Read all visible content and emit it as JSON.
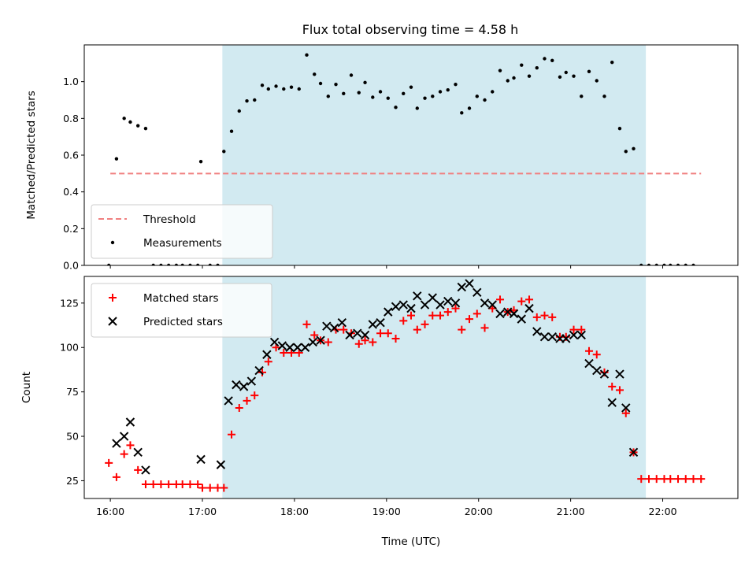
{
  "title": "Flux total observing time = 4.58 h",
  "colors": {
    "shade": "#add8e6",
    "threshold": "#f08080",
    "measurement": "#000000",
    "matched": "#ff0000",
    "predicted": "#000000"
  },
  "chart_data": [
    {
      "type": "scatter",
      "title": "Flux total observing time = 4.58 h",
      "xlabel": "",
      "ylabel": "Matched/Predicted stars",
      "ylim": [
        0,
        1.2
      ],
      "yticks": [
        0.0,
        0.2,
        0.4,
        0.6,
        0.8,
        1.0
      ],
      "ytick_labels": [
        "0.0",
        "0.2",
        "0.4",
        "0.6",
        "0.8",
        "1.0"
      ],
      "xlim": [
        "15:43",
        "22:49"
      ],
      "xticks": [
        "16:00",
        "17:00",
        "18:00",
        "19:00",
        "20:00",
        "21:00",
        "22:00"
      ],
      "shaded_region": [
        "17:13",
        "21:49"
      ],
      "legend": {
        "position": "lower left",
        "entries": [
          "Threshold",
          "Measurements"
        ]
      },
      "series": [
        {
          "name": "Threshold",
          "kind": "line",
          "x": [
            "16:00",
            "22:25"
          ],
          "y": [
            0.5,
            0.5
          ]
        },
        {
          "name": "Measurements",
          "kind": "points",
          "points": [
            [
              "15:59",
              0.0
            ],
            [
              "16:04",
              0.58
            ],
            [
              "16:09",
              0.8
            ],
            [
              "16:13",
              0.78
            ],
            [
              "16:18",
              0.76
            ],
            [
              "16:23",
              0.745
            ],
            [
              "16:28",
              0.0
            ],
            [
              "16:33",
              0.0
            ],
            [
              "16:38",
              0.0
            ],
            [
              "16:43",
              0.0
            ],
            [
              "16:47",
              0.0
            ],
            [
              "16:52",
              0.0
            ],
            [
              "16:57",
              0.0
            ],
            [
              "16:59",
              0.565
            ],
            [
              "17:05",
              0.0
            ],
            [
              "17:10",
              0.0
            ],
            [
              "17:14",
              0.62
            ],
            [
              "17:19",
              0.73
            ],
            [
              "17:24",
              0.84
            ],
            [
              "17:29",
              0.895
            ],
            [
              "17:34",
              0.9
            ],
            [
              "17:39",
              0.98
            ],
            [
              "17:43",
              0.96
            ],
            [
              "17:48",
              0.975
            ],
            [
              "17:53",
              0.96
            ],
            [
              "17:58",
              0.97
            ],
            [
              "18:03",
              0.96
            ],
            [
              "18:08",
              1.145
            ],
            [
              "18:13",
              1.04
            ],
            [
              "18:17",
              0.99
            ],
            [
              "18:22",
              0.92
            ],
            [
              "18:27",
              0.985
            ],
            [
              "18:32",
              0.935
            ],
            [
              "18:37",
              1.035
            ],
            [
              "18:42",
              0.94
            ],
            [
              "18:46",
              0.995
            ],
            [
              "18:51",
              0.915
            ],
            [
              "18:56",
              0.945
            ],
            [
              "19:01",
              0.91
            ],
            [
              "19:06",
              0.86
            ],
            [
              "19:11",
              0.935
            ],
            [
              "19:16",
              0.97
            ],
            [
              "19:20",
              0.855
            ],
            [
              "19:25",
              0.91
            ],
            [
              "19:30",
              0.92
            ],
            [
              "19:35",
              0.945
            ],
            [
              "19:40",
              0.955
            ],
            [
              "19:45",
              0.985
            ],
            [
              "19:49",
              0.83
            ],
            [
              "19:54",
              0.855
            ],
            [
              "19:59",
              0.92
            ],
            [
              "20:04",
              0.9
            ],
            [
              "20:09",
              0.945
            ],
            [
              "20:14",
              1.06
            ],
            [
              "20:19",
              1.005
            ],
            [
              "20:23",
              1.02
            ],
            [
              "20:28",
              1.09
            ],
            [
              "20:33",
              1.03
            ],
            [
              "20:38",
              1.075
            ],
            [
              "20:43",
              1.125
            ],
            [
              "20:48",
              1.115
            ],
            [
              "20:53",
              1.025
            ],
            [
              "20:57",
              1.05
            ],
            [
              "21:02",
              1.03
            ],
            [
              "21:07",
              0.92
            ],
            [
              "21:12",
              1.055
            ],
            [
              "21:17",
              1.005
            ],
            [
              "21:22",
              0.92
            ],
            [
              "21:27",
              1.105
            ],
            [
              "21:32",
              0.745
            ],
            [
              "21:36",
              0.62
            ],
            [
              "21:41",
              0.635
            ],
            [
              "21:46",
              0.0
            ],
            [
              "21:51",
              0.0
            ],
            [
              "21:56",
              0.0
            ],
            [
              "22:01",
              0.0
            ],
            [
              "22:05",
              0.0
            ],
            [
              "22:10",
              0.0
            ],
            [
              "22:15",
              0.0
            ],
            [
              "22:20",
              0.0
            ]
          ]
        }
      ]
    },
    {
      "type": "scatter",
      "title": "",
      "xlabel": "Time (UTC)",
      "ylabel": "Count",
      "ylim": [
        15,
        140
      ],
      "yticks": [
        25,
        50,
        75,
        100,
        125
      ],
      "ytick_labels": [
        "25",
        "50",
        "75",
        "100",
        "125"
      ],
      "xlim": [
        "15:43",
        "22:49"
      ],
      "xticks": [
        "16:00",
        "17:00",
        "18:00",
        "19:00",
        "20:00",
        "21:00",
        "22:00"
      ],
      "xtick_labels": [
        "16:00",
        "17:00",
        "18:00",
        "19:00",
        "20:00",
        "21:00",
        "22:00"
      ],
      "shaded_region": [
        "17:13",
        "21:49"
      ],
      "legend": {
        "position": "upper left",
        "entries": [
          "Matched stars",
          "Predicted stars"
        ]
      },
      "series": [
        {
          "name": "Matched stars",
          "kind": "plus",
          "points": [
            [
              "15:59",
              35
            ],
            [
              "16:04",
              27
            ],
            [
              "16:09",
              40
            ],
            [
              "16:13",
              45
            ],
            [
              "16:18",
              31
            ],
            [
              "16:23",
              23
            ],
            [
              "16:28",
              23
            ],
            [
              "16:33",
              23
            ],
            [
              "16:38",
              23
            ],
            [
              "16:43",
              23
            ],
            [
              "16:47",
              23
            ],
            [
              "16:52",
              23
            ],
            [
              "16:57",
              23
            ],
            [
              "17:00",
              21
            ],
            [
              "17:05",
              21
            ],
            [
              "17:10",
              21
            ],
            [
              "17:14",
              21
            ],
            [
              "17:19",
              51
            ],
            [
              "17:24",
              66
            ],
            [
              "17:29",
              70
            ],
            [
              "17:34",
              73
            ],
            [
              "17:39",
              86
            ],
            [
              "17:43",
              92
            ],
            [
              "17:48",
              100
            ],
            [
              "17:53",
              97
            ],
            [
              "17:58",
              97
            ],
            [
              "18:03",
              97
            ],
            [
              "18:08",
              113
            ],
            [
              "18:13",
              107
            ],
            [
              "18:17",
              104
            ],
            [
              "18:22",
              103
            ],
            [
              "18:27",
              110
            ],
            [
              "18:32",
              110
            ],
            [
              "18:37",
              108
            ],
            [
              "18:42",
              102
            ],
            [
              "18:46",
              104
            ],
            [
              "18:51",
              103
            ],
            [
              "18:56",
              108
            ],
            [
              "19:01",
              108
            ],
            [
              "19:06",
              105
            ],
            [
              "19:11",
              115
            ],
            [
              "19:16",
              118
            ],
            [
              "19:20",
              110
            ],
            [
              "19:25",
              113
            ],
            [
              "19:30",
              118
            ],
            [
              "19:35",
              118
            ],
            [
              "19:40",
              120
            ],
            [
              "19:45",
              122
            ],
            [
              "19:49",
              110
            ],
            [
              "19:54",
              116
            ],
            [
              "19:59",
              119
            ],
            [
              "20:04",
              111
            ],
            [
              "20:09",
              122
            ],
            [
              "20:14",
              127
            ],
            [
              "20:19",
              120
            ],
            [
              "20:23",
              121
            ],
            [
              "20:28",
              126
            ],
            [
              "20:33",
              127
            ],
            [
              "20:38",
              117
            ],
            [
              "20:43",
              118
            ],
            [
              "20:48",
              117
            ],
            [
              "20:53",
              106
            ],
            [
              "20:57",
              106
            ],
            [
              "21:02",
              110
            ],
            [
              "21:07",
              110
            ],
            [
              "21:12",
              98
            ],
            [
              "21:17",
              96
            ],
            [
              "21:22",
              86
            ],
            [
              "21:27",
              78
            ],
            [
              "21:32",
              76
            ],
            [
              "21:36",
              63
            ],
            [
              "21:41",
              41
            ],
            [
              "21:46",
              26
            ],
            [
              "21:51",
              26
            ],
            [
              "21:56",
              26
            ],
            [
              "22:01",
              26
            ],
            [
              "22:05",
              26
            ],
            [
              "22:10",
              26
            ],
            [
              "22:15",
              26
            ],
            [
              "22:20",
              26
            ],
            [
              "22:25",
              26
            ]
          ]
        },
        {
          "name": "Predicted stars",
          "kind": "cross",
          "points": [
            [
              "16:04",
              46
            ],
            [
              "16:09",
              50
            ],
            [
              "16:13",
              58
            ],
            [
              "16:18",
              41
            ],
            [
              "16:23",
              31
            ],
            [
              "16:59",
              37
            ],
            [
              "17:12",
              34
            ],
            [
              "17:17",
              70
            ],
            [
              "17:22",
              79
            ],
            [
              "17:27",
              78
            ],
            [
              "17:32",
              81
            ],
            [
              "17:37",
              87
            ],
            [
              "17:42",
              96
            ],
            [
              "17:47",
              103
            ],
            [
              "17:52",
              101
            ],
            [
              "17:57",
              100
            ],
            [
              "18:02",
              100
            ],
            [
              "18:07",
              100
            ],
            [
              "18:12",
              103
            ],
            [
              "18:17",
              104
            ],
            [
              "18:21",
              112
            ],
            [
              "18:26",
              111
            ],
            [
              "18:31",
              114
            ],
            [
              "18:36",
              107
            ],
            [
              "18:41",
              108
            ],
            [
              "18:46",
              107
            ],
            [
              "18:51",
              113
            ],
            [
              "18:56",
              114
            ],
            [
              "19:01",
              120
            ],
            [
              "19:06",
              123
            ],
            [
              "19:11",
              124
            ],
            [
              "19:16",
              122
            ],
            [
              "19:20",
              129
            ],
            [
              "19:25",
              124
            ],
            [
              "19:30",
              128
            ],
            [
              "19:35",
              124
            ],
            [
              "19:40",
              126
            ],
            [
              "19:45",
              125
            ],
            [
              "19:49",
              134
            ],
            [
              "19:54",
              136
            ],
            [
              "19:59",
              131
            ],
            [
              "20:04",
              125
            ],
            [
              "20:09",
              124
            ],
            [
              "20:14",
              119
            ],
            [
              "20:19",
              120
            ],
            [
              "20:23",
              119
            ],
            [
              "20:28",
              116
            ],
            [
              "20:33",
              122
            ],
            [
              "20:38",
              109
            ],
            [
              "20:43",
              106
            ],
            [
              "20:48",
              106
            ],
            [
              "20:53",
              105
            ],
            [
              "20:57",
              105
            ],
            [
              "21:02",
              107
            ],
            [
              "21:07",
              107
            ],
            [
              "21:12",
              91
            ],
            [
              "21:17",
              87
            ],
            [
              "21:22",
              85
            ],
            [
              "21:27",
              69
            ],
            [
              "21:32",
              85
            ],
            [
              "21:36",
              66
            ],
            [
              "21:41",
              41
            ]
          ]
        }
      ]
    }
  ]
}
